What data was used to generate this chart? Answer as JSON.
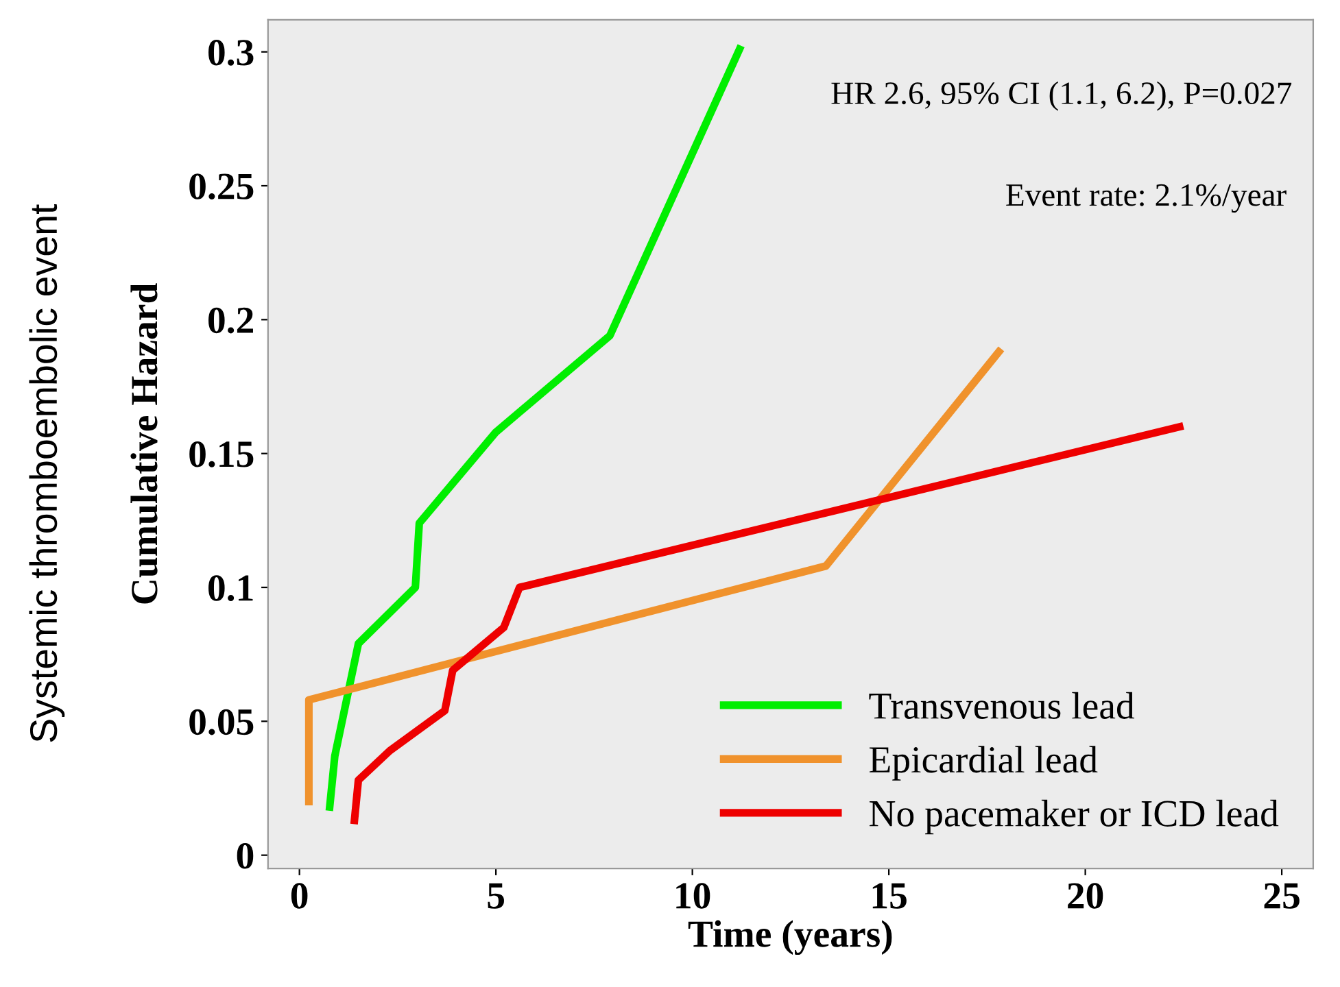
{
  "chart_data": {
    "type": "line",
    "xlabel": "Time (years)",
    "ylabel": "Cumulative Hazard",
    "annotations": [
      "Systemic thromboembolic event",
      "HR 2.6, 95% CI (1.1, 6.2), P=0.027",
      "Event rate: 2.1%/year"
    ],
    "xlim": [
      -0.8,
      25.8
    ],
    "ylim": [
      -0.005,
      0.312
    ],
    "xticks": [
      0,
      5,
      10,
      15,
      20,
      25
    ],
    "yticks": [
      0,
      0.05,
      0.1,
      0.15,
      0.2,
      0.25,
      0.3
    ],
    "grid": false,
    "legend": "bottom right",
    "marker": "none",
    "line_style": "solid",
    "series": [
      {
        "name": "Transvenous lead",
        "color": "#00ee00",
        "x": [
          0.77,
          0.9,
          1.5,
          2.95,
          3.05,
          5.0,
          7.9,
          11.2
        ],
        "values": [
          0.018,
          0.037,
          0.079,
          0.1,
          0.124,
          0.158,
          0.194,
          0.301
        ]
      },
      {
        "name": "Epicardial lead",
        "color": "#f0922c",
        "x": [
          0.24,
          0.24,
          13.4,
          17.8
        ],
        "values": [
          0.02,
          0.058,
          0.108,
          0.188
        ]
      },
      {
        "name": "No pacemaker or ICD lead",
        "color": "#ee0000",
        "x": [
          1.4,
          1.5,
          2.3,
          3.7,
          3.9,
          5.2,
          5.6,
          22.4
        ],
        "values": [
          0.013,
          0.028,
          0.039,
          0.054,
          0.069,
          0.085,
          0.1,
          0.16
        ]
      }
    ]
  }
}
